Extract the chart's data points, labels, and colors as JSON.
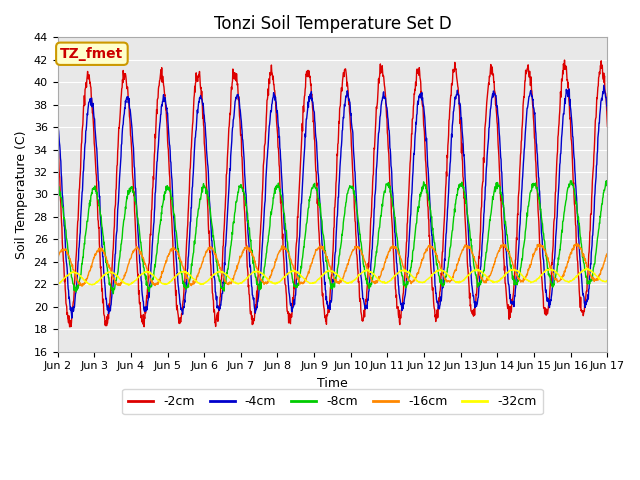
{
  "title": "Tonzi Soil Temperature Set D",
  "xlabel": "Time",
  "ylabel": "Soil Temperature (C)",
  "ylim": [
    16,
    44
  ],
  "xlim_days": [
    0,
    15
  ],
  "x_tick_labels": [
    "Jun 2",
    "Jun 3",
    "Jun 4",
    "Jun 5",
    "Jun 6",
    "Jun 7",
    "Jun 8",
    "Jun 9",
    "Jun 10",
    "Jun 11",
    "Jun 12",
    "Jun 13",
    "Jun 14",
    "Jun 15",
    "Jun 16",
    "Jun 17"
  ],
  "series": [
    {
      "label": "-2cm",
      "color": "#dd0000",
      "amplitude": 11.0,
      "mean": 29.5,
      "phase_shift": 0.0,
      "trend": 0.06,
      "noise": 0.3
    },
    {
      "label": "-4cm",
      "color": "#0000cc",
      "amplitude": 9.5,
      "mean": 29.0,
      "phase_shift": 0.07,
      "trend": 0.05,
      "noise": 0.2
    },
    {
      "label": "-8cm",
      "color": "#00cc00",
      "amplitude": 4.5,
      "mean": 26.0,
      "phase_shift": 0.17,
      "trend": 0.04,
      "noise": 0.15
    },
    {
      "label": "-16cm",
      "color": "#ff8800",
      "amplitude": 1.6,
      "mean": 23.5,
      "phase_shift": 0.33,
      "trend": 0.03,
      "noise": 0.08
    },
    {
      "label": "-32cm",
      "color": "#ffff00",
      "amplitude": 0.55,
      "mean": 22.5,
      "phase_shift": 0.6,
      "trend": 0.02,
      "noise": 0.03
    }
  ],
  "annotation_text": "TZ_fmet",
  "annotation_color": "#cc0000",
  "annotation_bg": "#ffffcc",
  "annotation_border": "#cc9900",
  "bg_color": "#e8e8e8",
  "grid_color": "#ffffff",
  "title_fontsize": 12,
  "label_fontsize": 9,
  "tick_fontsize": 8,
  "legend_fontsize": 9,
  "figsize": [
    6.4,
    4.8
  ],
  "dpi": 100
}
